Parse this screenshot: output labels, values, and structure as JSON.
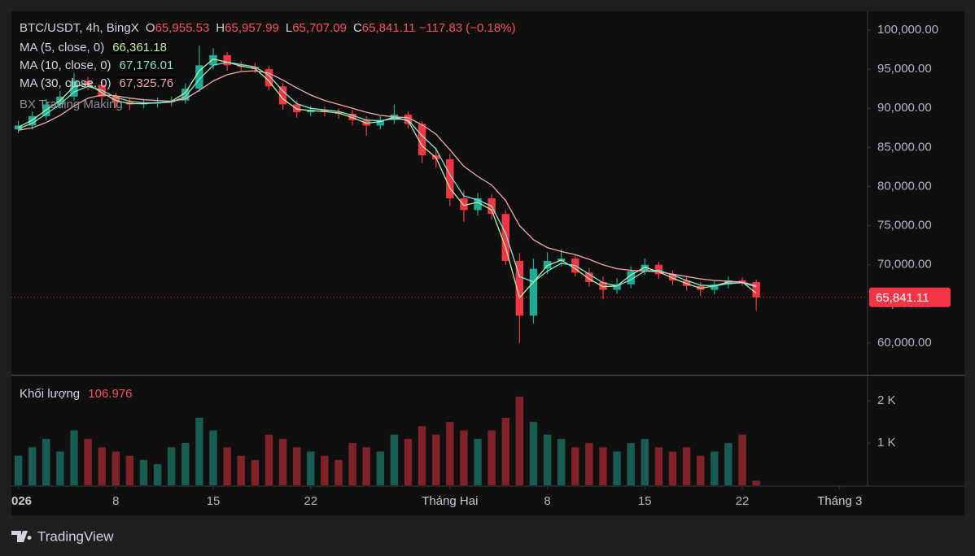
{
  "chart_data": {
    "type": "candlestick",
    "title": "BTC/USDT, 4h, BingX",
    "ohlc_legend": [
      {
        "label": "O",
        "text": "65,955.53"
      },
      {
        "label": "H",
        "text": "65,957.99"
      },
      {
        "label": "L",
        "text": "65,707.09"
      },
      {
        "label": "C",
        "text": "65,841.11"
      }
    ],
    "change": "−117.83 (−0.18%)",
    "annotation": "BX Trading Making",
    "up_color": "#22ab94",
    "down_color": "#f23645",
    "grid": false,
    "x": [
      "2026-01-01",
      "2026-01-02",
      "2026-01-03",
      "2026-01-04",
      "2026-01-05",
      "2026-01-06",
      "2026-01-07",
      "2026-01-08",
      "2026-01-09",
      "2026-01-10",
      "2026-01-11",
      "2026-01-12",
      "2026-01-13",
      "2026-01-14",
      "2026-01-15",
      "2026-01-16",
      "2026-01-17",
      "2026-01-18",
      "2026-01-19",
      "2026-01-20",
      "2026-01-21",
      "2026-01-22",
      "2026-01-23",
      "2026-01-24",
      "2026-01-25",
      "2026-01-26",
      "2026-01-27",
      "2026-01-28",
      "2026-01-29",
      "2026-01-30",
      "2026-01-31",
      "2026-02-01",
      "2026-02-02",
      "2026-02-03",
      "2026-02-04",
      "2026-02-05",
      "2026-02-06",
      "2026-02-07",
      "2026-02-08",
      "2026-02-09",
      "2026-02-10",
      "2026-02-11",
      "2026-02-12",
      "2026-02-13",
      "2026-02-14",
      "2026-02-15",
      "2026-02-16",
      "2026-02-17",
      "2026-02-18",
      "2026-02-19",
      "2026-02-20",
      "2026-02-21",
      "2026-02-22",
      "2026-02-23"
    ],
    "open": [
      87300,
      87800,
      89000,
      90500,
      91500,
      93500,
      93000,
      91500,
      90800,
      90500,
      90600,
      90800,
      91000,
      92500,
      95500,
      96800,
      95500,
      95300,
      95000,
      92800,
      90500,
      89500,
      89800,
      89500,
      89300,
      88500,
      87800,
      88500,
      89200,
      88000,
      84000,
      83500,
      78500,
      77000,
      78500,
      76500,
      70500,
      63500,
      69500,
      70500,
      70800,
      69000,
      67800,
      66800,
      67500,
      69200,
      70000,
      68800,
      68000,
      67300,
      66800,
      67500,
      68000,
      67800
    ],
    "high": [
      88400,
      89600,
      91200,
      92200,
      94500,
      94000,
      93400,
      92000,
      91300,
      91200,
      91400,
      91500,
      93200,
      98000,
      97700,
      97200,
      96000,
      95800,
      95400,
      93200,
      91000,
      90300,
      90200,
      90000,
      89800,
      89000,
      89000,
      90500,
      89600,
      88300,
      85000,
      84200,
      79500,
      79200,
      79000,
      77000,
      71500,
      70800,
      71600,
      72000,
      71200,
      69600,
      68500,
      68300,
      69800,
      70800,
      70400,
      69300,
      68500,
      67800,
      68000,
      68500,
      68400,
      68100
    ],
    "low": [
      86800,
      87300,
      88500,
      90000,
      91000,
      92300,
      91000,
      90000,
      89800,
      90000,
      90100,
      90300,
      90600,
      92100,
      95000,
      94800,
      94800,
      94500,
      92300,
      89800,
      88800,
      89000,
      89000,
      88700,
      87800,
      86500,
      87300,
      88000,
      87400,
      83000,
      82400,
      77500,
      75500,
      76300,
      75800,
      70000,
      60000,
      62500,
      68800,
      69800,
      68500,
      67200,
      65600,
      66300,
      67000,
      68700,
      68200,
      67400,
      66700,
      66000,
      66200,
      67000,
      67300,
      64200
    ],
    "close": [
      87800,
      89000,
      90500,
      91500,
      93500,
      93000,
      91500,
      90800,
      90500,
      90600,
      90800,
      91000,
      92500,
      95500,
      96800,
      95500,
      95300,
      95000,
      92800,
      90500,
      89500,
      89800,
      89500,
      89300,
      88500,
      87800,
      88500,
      89200,
      88000,
      84000,
      83500,
      78500,
      77000,
      78500,
      76500,
      70500,
      63500,
      69500,
      70500,
      70800,
      69000,
      67800,
      66800,
      67500,
      69200,
      70000,
      68800,
      68000,
      67300,
      66800,
      67500,
      68000,
      67800,
      65841.11
    ],
    "series": [
      {
        "name": "MA (5, close, 0)",
        "color": "#b8f0a0",
        "last_label": "66,361.18",
        "values": [
          87600,
          88500,
          89800,
          91000,
          92800,
          93100,
          92000,
          91000,
          90600,
          90600,
          90700,
          90900,
          92000,
          94800,
          96300,
          95900,
          95400,
          95100,
          93500,
          91200,
          89900,
          89700,
          89600,
          89400,
          88800,
          88100,
          88300,
          88900,
          88400,
          85200,
          83700,
          79800,
          77600,
          78000,
          77000,
          72200,
          65800,
          67800,
          69900,
          70600,
          69500,
          68200,
          67200,
          67300,
          68700,
          69700,
          69100,
          68300,
          67600,
          67000,
          67300,
          67800,
          67800,
          66361.18
        ]
      },
      {
        "name": "MA (10, close, 0)",
        "color": "#7ee8d6",
        "last_label": "67,176.01",
        "values": [
          87400,
          88100,
          89300,
          90500,
          92100,
          92800,
          92300,
          91400,
          90900,
          90700,
          90700,
          90800,
          91500,
          93700,
          95500,
          95900,
          95600,
          95300,
          94200,
          92200,
          90600,
          90000,
          89800,
          89600,
          89100,
          88500,
          88400,
          88700,
          88500,
          86500,
          84800,
          81500,
          78800,
          78300,
          77500,
          74000,
          68500,
          67800,
          69200,
          70200,
          69900,
          68800,
          67700,
          67300,
          68100,
          69200,
          69300,
          68700,
          68000,
          67400,
          67300,
          67600,
          67700,
          67176.01
        ]
      },
      {
        "name": "MA (30, close, 0)",
        "color": "#f4a9a8",
        "last_label": "67,325.76",
        "values": [
          87200,
          87500,
          88200,
          89100,
          90300,
          91300,
          91700,
          91600,
          91300,
          91100,
          91000,
          90900,
          91200,
          92300,
          93500,
          94300,
          94700,
          94800,
          94500,
          93600,
          92600,
          91700,
          91000,
          90500,
          90000,
          89500,
          89100,
          88900,
          88800,
          87900,
          86700,
          84700,
          82600,
          81300,
          80200,
          78200,
          75000,
          73200,
          72200,
          71700,
          71300,
          70700,
          70000,
          69500,
          69300,
          69200,
          69100,
          68800,
          68500,
          68200,
          68000,
          67900,
          67800,
          67325.76
        ]
      }
    ],
    "ylim": [
      55950,
      102390
    ],
    "yticks": [
      {
        "value": 60000,
        "label": "60,000.00"
      },
      {
        "value": 65000,
        "label": "65,000.00"
      },
      {
        "value": 70000,
        "label": "70,000.00"
      },
      {
        "value": 75000,
        "label": "75,000.00"
      },
      {
        "value": 80000,
        "label": "80,000.00"
      },
      {
        "value": 85000,
        "label": "85,000.00"
      },
      {
        "value": 90000,
        "label": "90,000.00"
      },
      {
        "value": 95000,
        "label": "95,000.00"
      },
      {
        "value": 100000,
        "label": "100,000.00"
      }
    ],
    "xlim": [
      "2025-12-31T12:00",
      "2026-03-03T00:00"
    ],
    "xticks": [
      {
        "value": "2026-01-01",
        "label": "026"
      },
      {
        "value": "2026-01-08",
        "label": "8"
      },
      {
        "value": "2026-01-15",
        "label": "15"
      },
      {
        "value": "2026-01-22",
        "label": "22"
      },
      {
        "value": "2026-02-01",
        "label": "Tháng Hai"
      },
      {
        "value": "2026-02-08",
        "label": "8"
      },
      {
        "value": "2026-02-15",
        "label": "15"
      },
      {
        "value": "2026-02-22",
        "label": "22"
      },
      {
        "value": "2026-03-01",
        "label": "Tháng 3"
      }
    ],
    "last_price": {
      "value": 65841.11,
      "label": "65,841.11"
    },
    "volume": {
      "title": "Khối lượng",
      "values": [
        700,
        900,
        1100,
        800,
        1300,
        1100,
        900,
        800,
        700,
        600,
        500,
        900,
        1000,
        1600,
        1300,
        900,
        700,
        600,
        1200,
        1100,
        900,
        800,
        700,
        600,
        1000,
        900,
        800,
        1200,
        1100,
        1400,
        1200,
        1500,
        1300,
        1100,
        1300,
        1600,
        2100,
        1500,
        1200,
        1100,
        900,
        1000,
        900,
        800,
        1000,
        1100,
        900,
        800,
        900,
        700,
        800,
        1000,
        1200,
        106.976
      ],
      "ylim": [
        0,
        2600
      ],
      "yticks": [
        {
          "value": 1000,
          "label": "1 K"
        },
        {
          "value": 2000,
          "label": "2 K"
        }
      ]
    }
  },
  "branding": "TradingView"
}
